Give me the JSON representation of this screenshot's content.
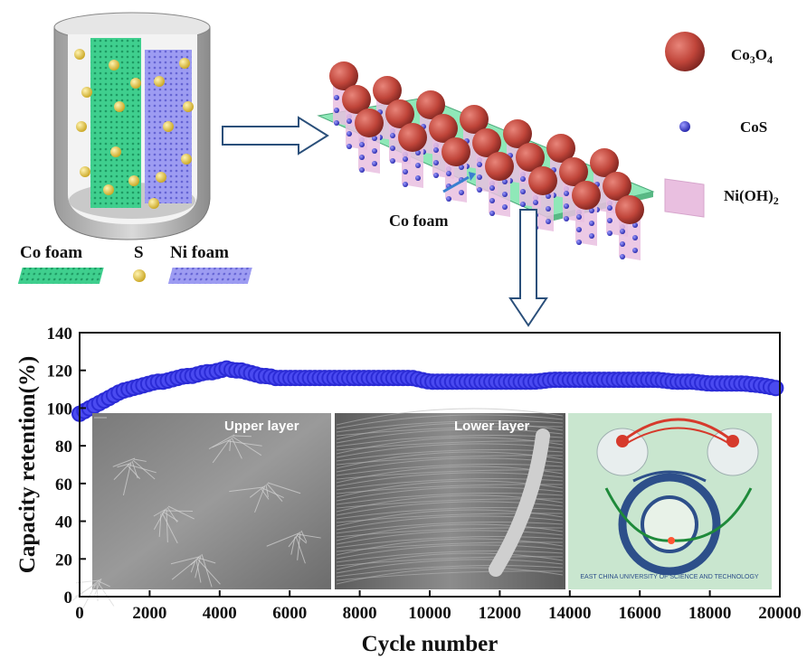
{
  "schematic": {
    "legend_left": {
      "co_foam": "Co foam",
      "sulfur": "S",
      "ni_foam": "Ni foam"
    },
    "legend_right": {
      "co3o4": "Co",
      "co3o4_sub1": "3",
      "co3o4_mid": "O",
      "co3o4_sub2": "4",
      "cos": "CoS",
      "nioh2": "Ni(OH)",
      "nioh2_sub": "2"
    },
    "substrate_label": "Co foam",
    "colors": {
      "co_foam": "#3fcf8e",
      "ni_foam": "#8f8ef0",
      "sulfur": "#e3c74a",
      "co3o4": "#c0453a",
      "cos": "#3a3ad8",
      "nioh2": "#e9bfe0",
      "substrate": "#8fe8b8"
    }
  },
  "insets": {
    "upper": "Upper layer",
    "lower": "Lower layer",
    "photo_text": "EAST CHINA UNIVERSITY OF SCIENCE AND TECHNOLOGY"
  },
  "chart_data": {
    "type": "scatter",
    "xlabel": "Cycle number",
    "ylabel": "Capacity retention(%)",
    "xlim": [
      0,
      20000
    ],
    "ylim": [
      0,
      140
    ],
    "xticks": [
      0,
      2000,
      4000,
      6000,
      8000,
      10000,
      12000,
      14000,
      16000,
      18000,
      20000
    ],
    "yticks": [
      0,
      20,
      40,
      60,
      80,
      100,
      120,
      140
    ],
    "marker_color": "#2b2bd6",
    "series": [
      {
        "x": [
          0,
          200,
          400,
          600,
          800,
          1000,
          1200,
          1400,
          1600,
          1800,
          2000,
          2200,
          2400,
          2600,
          2800,
          3000,
          3200,
          3400,
          3600,
          3800,
          4000,
          4200,
          4400,
          4600,
          4800,
          5000,
          5200,
          5400,
          5600,
          5800,
          6000,
          6500,
          7000,
          7500,
          8000,
          8500,
          9000,
          9500,
          10000,
          10500,
          11000,
          11500,
          12000,
          12500,
          13000,
          13500,
          14000,
          14500,
          15000,
          15500,
          16000,
          16500,
          17000,
          17500,
          18000,
          18500,
          19000,
          19500,
          19800,
          20000
        ],
        "y": [
          97,
          99,
          101,
          103,
          105,
          107,
          109,
          110,
          111,
          112,
          113,
          114,
          114,
          115,
          116,
          117,
          117,
          118,
          119,
          119,
          120,
          121,
          120,
          120,
          119,
          118,
          117,
          117,
          116,
          116,
          116,
          116,
          116,
          116,
          116,
          116,
          116,
          116,
          114,
          114,
          114,
          114,
          114,
          114,
          114,
          115,
          115,
          115,
          115,
          115,
          115,
          115,
          114,
          114,
          113,
          113,
          113,
          112,
          111,
          110
        ]
      }
    ]
  }
}
